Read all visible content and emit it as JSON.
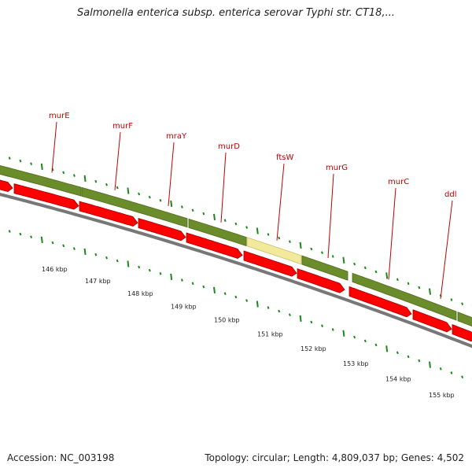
{
  "title": "Salmonella enterica subsp. enterica serovar Typhi str. CT18,...",
  "footer": {
    "accession": "Accession: NC_003198",
    "summary": "Topology: circular; Length: 4,809,037 bp; Genes: 4,502"
  },
  "colors": {
    "cds_forward": "#ff0000",
    "gene_track": "#6b8c2a",
    "highlight": "#f3e99a",
    "tick": "#1a8a1a",
    "label": "#c00000",
    "backbone": "#777777"
  },
  "genes": [
    {
      "name": "murE"
    },
    {
      "name": "murF"
    },
    {
      "name": "mraY"
    },
    {
      "name": "murD"
    },
    {
      "name": "ftsW",
      "highlighted": true
    },
    {
      "name": "murG"
    },
    {
      "name": "murC"
    },
    {
      "name": "ddl"
    }
  ],
  "scale_labels": [
    "146 kbp",
    "147 kbp",
    "148 kbp",
    "149 kbp",
    "150 kbp",
    "151 kbp",
    "152 kbp",
    "153 kbp",
    "154 kbp",
    "155 kbp"
  ]
}
